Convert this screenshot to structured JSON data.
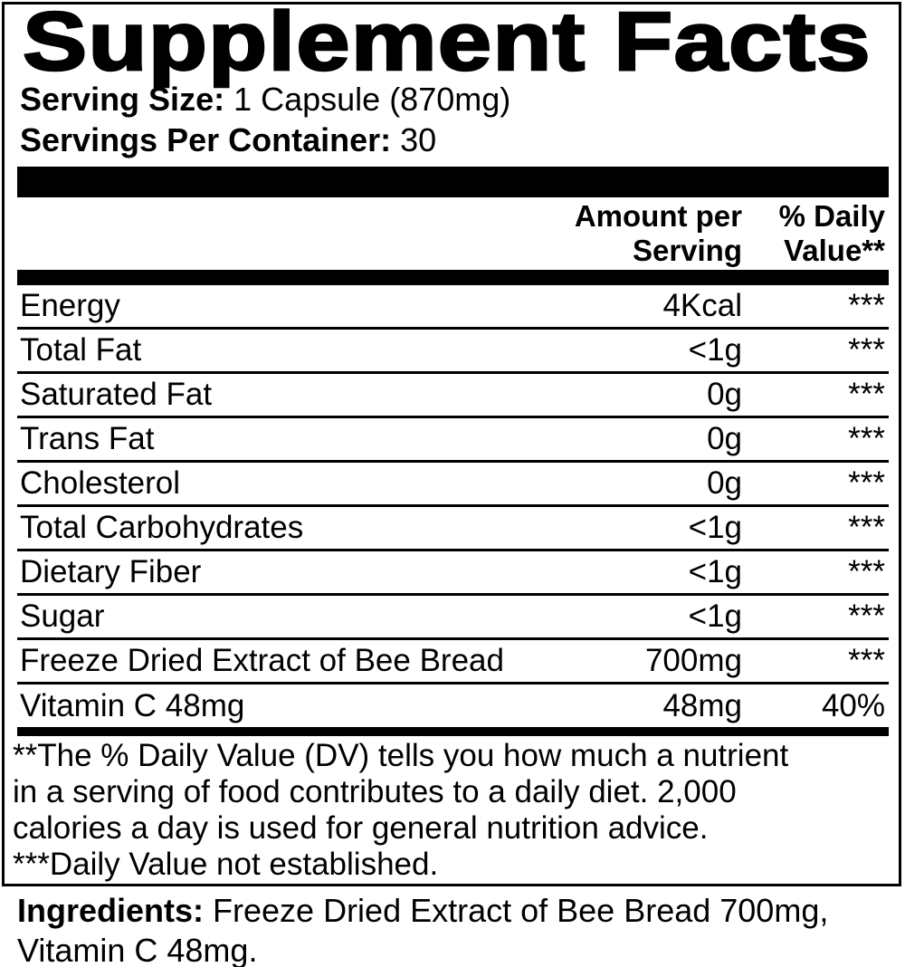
{
  "title": "Supplement Facts",
  "serving": {
    "size_label": "Serving Size:",
    "size_value": " 1 Capsule (870mg)",
    "container_label": "Servings Per Container:",
    "container_value": " 30"
  },
  "table": {
    "header": {
      "amount_line1": "Amount per",
      "amount_line2": "Serving",
      "dv_line1": "% Daily",
      "dv_line2": "Value**"
    },
    "rows": [
      {
        "label": "Energy",
        "amount": "4Kcal",
        "dv": "***"
      },
      {
        "label": "Total Fat",
        "amount": "<1g",
        "dv": "***"
      },
      {
        "label": "Saturated Fat",
        "amount": "0g",
        "dv": "***"
      },
      {
        "label": "Trans Fat",
        "amount": "0g",
        "dv": "***"
      },
      {
        "label": "Cholesterol",
        "amount": "0g",
        "dv": "***"
      },
      {
        "label": "Total Carbohydrates",
        "amount": "<1g",
        "dv": "***"
      },
      {
        "label": "Dietary Fiber",
        "amount": "<1g",
        "dv": "***"
      },
      {
        "label": "Sugar",
        "amount": "<1g",
        "dv": "***"
      },
      {
        "label": "Freeze Dried Extract of Bee Bread",
        "amount": "700mg",
        "dv": "***"
      },
      {
        "label": "Vitamin C 48mg",
        "amount": "48mg",
        "dv": "40%"
      }
    ]
  },
  "footnote": {
    "lines": [
      "**The % Daily Value (DV) tells you how much a nutrient",
      "in a serving of food contributes to a daily diet. 2,000",
      "calories a day is used for general nutrition advice.",
      "***Daily Value not established."
    ]
  },
  "ingredients": {
    "label": "Ingredients:",
    "line1_rest": " Freeze Dried Extract of Bee Bread 700mg,",
    "line2": "Vitamin C 48mg."
  },
  "colors": {
    "ink": "#000000",
    "paper": "#ffffff"
  }
}
